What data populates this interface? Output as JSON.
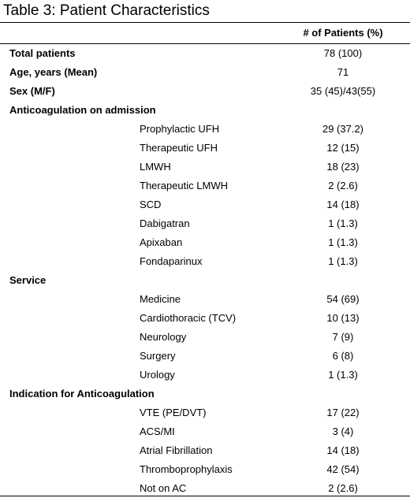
{
  "title": "Table 3: Patient Characteristics",
  "header": {
    "value_col": "# of Patients (%)"
  },
  "rows": [
    {
      "label": "Total patients",
      "value": "78 (100)",
      "kind": "summary"
    },
    {
      "label": "Age, years (Mean)",
      "value": "71",
      "kind": "summary"
    },
    {
      "label": "Sex (M/F)",
      "value": "35 (45)/43(55)",
      "kind": "summary"
    },
    {
      "label": "Anticoagulation on admission",
      "value": "",
      "kind": "section"
    },
    {
      "label": "Prophylactic UFH",
      "value": "29 (37.2)",
      "kind": "item"
    },
    {
      "label": "Therapeutic UFH",
      "value": "12 (15)",
      "kind": "item"
    },
    {
      "label": "LMWH",
      "value": "18 (23)",
      "kind": "item"
    },
    {
      "label": "Therapeutic LMWH",
      "value": "2 (2.6)",
      "kind": "item"
    },
    {
      "label": "SCD",
      "value": "14 (18)",
      "kind": "item"
    },
    {
      "label": "Dabigatran",
      "value": "1 (1.3)",
      "kind": "item"
    },
    {
      "label": "Apixaban",
      "value": "1 (1.3)",
      "kind": "item"
    },
    {
      "label": "Fondaparinux",
      "value": "1 (1.3)",
      "kind": "item"
    },
    {
      "label": "Service",
      "value": "",
      "kind": "section"
    },
    {
      "label": "Medicine",
      "value": "54 (69)",
      "kind": "item"
    },
    {
      "label": "Cardiothoracic (TCV)",
      "value": "10 (13)",
      "kind": "item"
    },
    {
      "label": "Neurology",
      "value": "7 (9)",
      "kind": "item"
    },
    {
      "label": "Surgery",
      "value": "6 (8)",
      "kind": "item"
    },
    {
      "label": "Urology",
      "value": "1 (1.3)",
      "kind": "item"
    },
    {
      "label": "Indication for Anticoagulation",
      "value": "",
      "kind": "section"
    },
    {
      "label": "VTE (PE/DVT)",
      "value": "17 (22)",
      "kind": "item"
    },
    {
      "label": "ACS/MI",
      "value": "3 (4)",
      "kind": "item"
    },
    {
      "label": "Atrial Fibrillation",
      "value": "14 (18)",
      "kind": "item"
    },
    {
      "label": "Thromboprophylaxis",
      "value": "42 (54)",
      "kind": "item"
    },
    {
      "label": "Not on AC",
      "value": "2 (2.6)",
      "kind": "item"
    }
  ]
}
